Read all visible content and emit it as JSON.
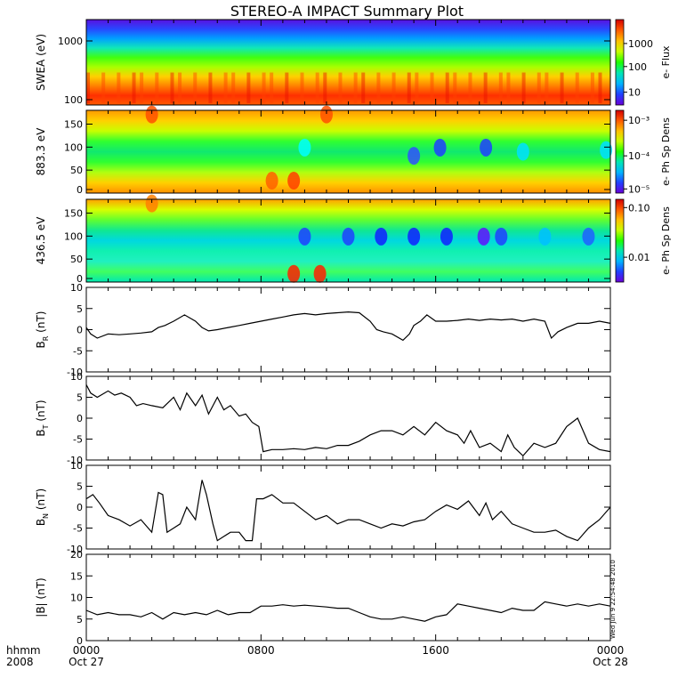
{
  "title": "STEREO-A IMPACT Summary Plot",
  "stamp": "Wed Jun 9 22:54:48 2010",
  "time_axis": {
    "row1_label": "hhmm",
    "row2_label": "2008",
    "ticks": [
      {
        "hour": 0,
        "hhmm": "0000",
        "date": "Oct 27"
      },
      {
        "hour": 8,
        "hhmm": "0800",
        "date": ""
      },
      {
        "hour": 16,
        "hhmm": "1600",
        "date": ""
      },
      {
        "hour": 24,
        "hhmm": "0000",
        "date": "Oct 28"
      }
    ]
  },
  "chart_data": [
    {
      "type": "heatmap",
      "ylabel": "SWEA (eV)",
      "y_scale": "log",
      "ylim": [
        95,
        2000
      ],
      "y_ticks": [
        "1000",
        "100"
      ],
      "colorbar_label": "e- Flux",
      "colorbar_scale": "log",
      "colorbar_ticks": [
        "1000",
        "100",
        "10"
      ]
    },
    {
      "type": "heatmap",
      "ylabel": "883.3 eV",
      "ylim": [
        0,
        180
      ],
      "y_ticks": [
        "150",
        "100",
        "50",
        "0"
      ],
      "colorbar_label": "e- Ph Sp Dens",
      "colorbar_scale": "log",
      "colorbar_ticks": [
        "10⁻³",
        "10⁻⁴",
        "10⁻⁵"
      ]
    },
    {
      "type": "heatmap",
      "ylabel": "436.5 eV",
      "ylim": [
        0,
        180
      ],
      "y_ticks": [
        "150",
        "100",
        "50",
        "0"
      ],
      "colorbar_label": "e- Ph Sp Dens",
      "colorbar_scale": "log",
      "colorbar_ticks": [
        "0.10",
        "0.01"
      ]
    },
    {
      "type": "line",
      "ylabel": "B_R (nT)",
      "ylim": [
        -10,
        10
      ],
      "y_ticks": [
        10,
        5,
        0,
        -5,
        -10
      ],
      "x": [
        0,
        0.2,
        0.5,
        1,
        1.5,
        2,
        2.5,
        3,
        3.3,
        3.6,
        4,
        4.5,
        5,
        5.3,
        5.6,
        6,
        6.5,
        7,
        7.5,
        8,
        8.5,
        9,
        9.5,
        10,
        10.5,
        11,
        11.5,
        12,
        12.5,
        13,
        13.3,
        13.6,
        14,
        14.5,
        14.8,
        15,
        15.3,
        15.6,
        16,
        16.5,
        17,
        17.5,
        18,
        18.5,
        19,
        19.5,
        20,
        20.5,
        21,
        21.3,
        21.6,
        22,
        22.5,
        23,
        23.5,
        24
      ],
      "y": [
        0.5,
        -1,
        -2,
        -1,
        -1.2,
        -1,
        -0.8,
        -0.5,
        0.5,
        1,
        2,
        3.5,
        2,
        0.5,
        -0.3,
        0,
        0.5,
        1,
        1.5,
        2,
        2.5,
        3,
        3.5,
        3.8,
        3.5,
        3.8,
        4,
        4.2,
        4,
        2,
        0,
        -0.5,
        -1,
        -2.5,
        -1,
        1,
        2,
        3.5,
        2,
        2,
        2.2,
        2.5,
        2.2,
        2.5,
        2.3,
        2.5,
        2,
        2.5,
        2,
        -2,
        -0.5,
        0.5,
        1.5,
        1.5,
        2,
        1.5
      ]
    },
    {
      "type": "line",
      "ylabel": "B_T (nT)",
      "ylim": [
        -10,
        10
      ],
      "y_ticks": [
        10,
        5,
        0,
        -5,
        -10
      ],
      "x": [
        0,
        0.2,
        0.5,
        1,
        1.3,
        1.6,
        2,
        2.3,
        2.6,
        3,
        3.5,
        4,
        4.3,
        4.6,
        5,
        5.3,
        5.6,
        6,
        6.3,
        6.6,
        7,
        7.3,
        7.6,
        7.9,
        8.1,
        8.5,
        9,
        9.5,
        10,
        10.5,
        11,
        11.5,
        12,
        12.5,
        13,
        13.5,
        14,
        14.5,
        15,
        15.5,
        16,
        16.5,
        17,
        17.3,
        17.6,
        18,
        18.5,
        19,
        19.3,
        19.6,
        20,
        20.5,
        21,
        21.5,
        22,
        22.5,
        23,
        23.5,
        24
      ],
      "y": [
        8,
        6,
        5,
        6.5,
        5.5,
        6,
        5,
        3,
        3.5,
        3,
        2.5,
        5,
        2,
        6,
        3,
        5.5,
        1,
        5,
        2,
        3,
        0.5,
        1,
        -1,
        -2,
        -8,
        -7.5,
        -7.5,
        -7.3,
        -7.5,
        -7,
        -7.3,
        -6.5,
        -6.5,
        -5.5,
        -4,
        -3,
        -3,
        -4,
        -2,
        -4,
        -1,
        -3,
        -4,
        -6,
        -3,
        -7,
        -6,
        -8,
        -4,
        -7,
        -9,
        -6,
        -7,
        -6,
        -2,
        0,
        -6,
        -7.5,
        -8
      ]
    },
    {
      "type": "line",
      "ylabel": "B_N (nT)",
      "ylim": [
        -10,
        10
      ],
      "y_ticks": [
        10,
        5,
        0,
        -5,
        -10
      ],
      "x": [
        0,
        0.3,
        0.6,
        1,
        1.5,
        2,
        2.5,
        3,
        3.3,
        3.5,
        3.7,
        4,
        4.3,
        4.6,
        5,
        5.3,
        5.5,
        5.8,
        6,
        6.3,
        6.6,
        7,
        7.3,
        7.6,
        7.8,
        8.1,
        8.5,
        9,
        9.5,
        10,
        10.5,
        11,
        11.5,
        12,
        12.5,
        13,
        13.5,
        14,
        14.5,
        15,
        15.5,
        16,
        16.5,
        17,
        17.5,
        18,
        18.3,
        18.6,
        19,
        19.5,
        20,
        20.5,
        21,
        21.5,
        22,
        22.5,
        23,
        23.5,
        24
      ],
      "y": [
        2,
        3,
        1,
        -2,
        -3,
        -4.5,
        -3,
        -6,
        3.5,
        3,
        -6,
        -5,
        -4,
        0,
        -3,
        6.5,
        3,
        -4,
        -8,
        -7,
        -6,
        -6,
        -8,
        -8,
        2,
        2,
        3,
        1,
        1,
        -1,
        -3,
        -2,
        -4,
        -3,
        -3,
        -4,
        -5,
        -4,
        -4.5,
        -3.5,
        -3,
        -1,
        0.5,
        -0.5,
        1.5,
        -2,
        1,
        -3,
        -1,
        -4,
        -5,
        -6,
        -6,
        -5.5,
        -7,
        -8,
        -5,
        -3,
        0
      ]
    },
    {
      "type": "line",
      "ylabel": "|B| (nT)",
      "ylim": [
        0,
        20
      ],
      "y_ticks": [
        20,
        15,
        10,
        5,
        0
      ],
      "x": [
        0,
        0.5,
        1,
        1.5,
        2,
        2.5,
        3,
        3.5,
        4,
        4.5,
        5,
        5.5,
        6,
        6.5,
        7,
        7.5,
        8,
        8.5,
        9,
        9.5,
        10,
        10.5,
        11,
        11.5,
        12,
        12.5,
        13,
        13.5,
        14,
        14.5,
        15,
        15.5,
        16,
        16.5,
        17,
        17.5,
        18,
        18.5,
        19,
        19.5,
        20,
        20.5,
        21,
        21.5,
        22,
        22.5,
        23,
        23.5,
        24
      ],
      "y": [
        7,
        6,
        6.5,
        6,
        6,
        5.5,
        6.5,
        5,
        6.5,
        6,
        6.5,
        6,
        7,
        6,
        6.5,
        6.5,
        8,
        8,
        8.3,
        8,
        8.2,
        8,
        7.8,
        7.5,
        7.5,
        6.5,
        5.5,
        5,
        5,
        5.5,
        5,
        4.5,
        5.5,
        6,
        8.5,
        8,
        7.5,
        7,
        6.5,
        7.5,
        7,
        7,
        9,
        8.5,
        8,
        8.5,
        8,
        8.5,
        8
      ]
    }
  ]
}
